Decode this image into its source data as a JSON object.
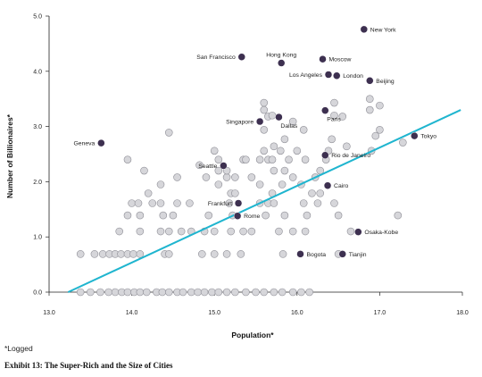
{
  "chart_data": {
    "type": "scatter",
    "xlabel": "Population*",
    "ylabel": "Number of Billionaires*",
    "xlim": [
      13.0,
      18.0
    ],
    "ylim": [
      0.0,
      5.0
    ],
    "xticks": [
      "13.0",
      "14.0",
      "15.0",
      "16.0",
      "17.0",
      "18.0"
    ],
    "yticks": [
      "0.0",
      "1.0",
      "2.0",
      "3.0",
      "4.0",
      "5.0"
    ],
    "trendline": {
      "x": [
        13.23,
        17.98
      ],
      "y": [
        0.0,
        3.3
      ],
      "color": "#1fb5cf"
    },
    "colors": {
      "highlight": "#3d3050",
      "background_point": "#d6d6da",
      "background_stroke": "#8e8e96"
    },
    "highlighted": [
      {
        "label": "New York",
        "x": 16.81,
        "y": 4.76
      },
      {
        "label": "San Francisco",
        "x": 15.33,
        "y": 4.26
      },
      {
        "label": "Hong Kong",
        "x": 15.81,
        "y": 4.15
      },
      {
        "label": "Moscow",
        "x": 16.31,
        "y": 4.22
      },
      {
        "label": "Los Angeles",
        "x": 16.38,
        "y": 3.94
      },
      {
        "label": "London",
        "x": 16.48,
        "y": 3.92
      },
      {
        "label": "Beijing",
        "x": 16.88,
        "y": 3.83
      },
      {
        "label": "Paris",
        "x": 16.34,
        "y": 3.29
      },
      {
        "label": "Singapore",
        "x": 15.55,
        "y": 3.09
      },
      {
        "label": "Dallas",
        "x": 15.78,
        "y": 3.17
      },
      {
        "label": "Geneva",
        "x": 13.63,
        "y": 2.7
      },
      {
        "label": "Tokyo",
        "x": 17.42,
        "y": 2.83
      },
      {
        "label": "Rio de Janeiro",
        "x": 16.34,
        "y": 2.48
      },
      {
        "label": "Seattle",
        "x": 15.11,
        "y": 2.29
      },
      {
        "label": "Cairo",
        "x": 16.37,
        "y": 1.93
      },
      {
        "label": "Frankfurt",
        "x": 15.29,
        "y": 1.61
      },
      {
        "label": "Rome",
        "x": 15.28,
        "y": 1.38
      },
      {
        "label": "Osaka-Kobe",
        "x": 16.74,
        "y": 1.09
      },
      {
        "label": "Bogota",
        "x": 16.04,
        "y": 0.69
      },
      {
        "label": "Tianjin",
        "x": 16.55,
        "y": 0.69
      }
    ],
    "background_points": [
      [
        13.38,
        0
      ],
      [
        13.5,
        0
      ],
      [
        13.62,
        0
      ],
      [
        13.72,
        0
      ],
      [
        13.8,
        0
      ],
      [
        13.88,
        0
      ],
      [
        13.95,
        0
      ],
      [
        14.03,
        0
      ],
      [
        14.1,
        0
      ],
      [
        14.18,
        0
      ],
      [
        14.3,
        0
      ],
      [
        14.37,
        0
      ],
      [
        14.45,
        0
      ],
      [
        14.55,
        0
      ],
      [
        14.62,
        0
      ],
      [
        14.72,
        0
      ],
      [
        14.8,
        0
      ],
      [
        14.88,
        0
      ],
      [
        14.97,
        0
      ],
      [
        15.05,
        0
      ],
      [
        15.15,
        0
      ],
      [
        15.25,
        0
      ],
      [
        15.38,
        0
      ],
      [
        15.5,
        0
      ],
      [
        15.6,
        0
      ],
      [
        15.72,
        0
      ],
      [
        15.82,
        0
      ],
      [
        15.95,
        0
      ],
      [
        16.05,
        0
      ],
      [
        16.15,
        0
      ],
      [
        13.38,
        0.69
      ],
      [
        13.55,
        0.69
      ],
      [
        13.65,
        0.69
      ],
      [
        13.73,
        0.69
      ],
      [
        13.8,
        0.69
      ],
      [
        13.87,
        0.69
      ],
      [
        13.95,
        0.69
      ],
      [
        14.02,
        0.69
      ],
      [
        14.1,
        0.69
      ],
      [
        14.4,
        0.69
      ],
      [
        14.45,
        0.69
      ],
      [
        14.85,
        0.69
      ],
      [
        15.0,
        0.69
      ],
      [
        15.15,
        0.69
      ],
      [
        15.32,
        0.69
      ],
      [
        15.83,
        0.69
      ],
      [
        16.5,
        0.69
      ],
      [
        13.85,
        1.1
      ],
      [
        14.1,
        1.1
      ],
      [
        14.35,
        1.1
      ],
      [
        14.45,
        1.1
      ],
      [
        14.6,
        1.1
      ],
      [
        14.72,
        1.1
      ],
      [
        14.88,
        1.1
      ],
      [
        15.0,
        1.1
      ],
      [
        15.2,
        1.1
      ],
      [
        15.35,
        1.1
      ],
      [
        15.45,
        1.1
      ],
      [
        15.78,
        1.1
      ],
      [
        15.95,
        1.1
      ],
      [
        16.1,
        1.1
      ],
      [
        16.65,
        1.1
      ],
      [
        13.95,
        1.39
      ],
      [
        14.1,
        1.39
      ],
      [
        14.38,
        1.39
      ],
      [
        14.5,
        1.39
      ],
      [
        14.93,
        1.39
      ],
      [
        15.22,
        1.39
      ],
      [
        15.62,
        1.39
      ],
      [
        15.85,
        1.39
      ],
      [
        16.12,
        1.39
      ],
      [
        16.5,
        1.39
      ],
      [
        17.22,
        1.39
      ],
      [
        14.0,
        1.61
      ],
      [
        14.08,
        1.61
      ],
      [
        14.25,
        1.61
      ],
      [
        14.35,
        1.61
      ],
      [
        14.55,
        1.61
      ],
      [
        14.7,
        1.61
      ],
      [
        15.18,
        1.61
      ],
      [
        15.55,
        1.61
      ],
      [
        15.65,
        1.61
      ],
      [
        15.72,
        1.61
      ],
      [
        16.08,
        1.61
      ],
      [
        16.25,
        1.61
      ],
      [
        16.45,
        1.61
      ],
      [
        14.2,
        1.79
      ],
      [
        15.2,
        1.79
      ],
      [
        15.25,
        1.79
      ],
      [
        15.7,
        1.79
      ],
      [
        16.18,
        1.79
      ],
      [
        16.28,
        1.79
      ],
      [
        14.35,
        1.95
      ],
      [
        15.05,
        1.95
      ],
      [
        15.55,
        1.95
      ],
      [
        15.82,
        1.95
      ],
      [
        16.05,
        1.95
      ],
      [
        14.55,
        2.08
      ],
      [
        14.9,
        2.08
      ],
      [
        15.15,
        2.08
      ],
      [
        15.25,
        2.08
      ],
      [
        15.45,
        2.08
      ],
      [
        15.95,
        2.08
      ],
      [
        16.22,
        2.08
      ],
      [
        14.15,
        2.2
      ],
      [
        15.05,
        2.2
      ],
      [
        15.15,
        2.2
      ],
      [
        15.72,
        2.2
      ],
      [
        15.85,
        2.2
      ],
      [
        16.28,
        2.2
      ],
      [
        13.95,
        2.4
      ],
      [
        14.82,
        2.3
      ],
      [
        15.05,
        2.4
      ],
      [
        15.35,
        2.4
      ],
      [
        15.38,
        2.4
      ],
      [
        15.55,
        2.4
      ],
      [
        15.65,
        2.4
      ],
      [
        15.7,
        2.4
      ],
      [
        15.9,
        2.4
      ],
      [
        16.1,
        2.4
      ],
      [
        16.35,
        2.4
      ],
      [
        15.0,
        2.56
      ],
      [
        15.6,
        2.56
      ],
      [
        15.8,
        2.56
      ],
      [
        16.0,
        2.56
      ],
      [
        16.38,
        2.56
      ],
      [
        16.6,
        2.64
      ],
      [
        16.9,
        2.56
      ],
      [
        15.72,
        2.64
      ],
      [
        15.85,
        2.77
      ],
      [
        16.42,
        2.77
      ],
      [
        16.95,
        2.83
      ],
      [
        17.0,
        2.94
      ],
      [
        14.45,
        2.89
      ],
      [
        15.6,
        2.94
      ],
      [
        16.08,
        2.94
      ],
      [
        15.65,
        3.18
      ],
      [
        15.7,
        3.2
      ],
      [
        15.95,
        3.09
      ],
      [
        16.45,
        3.2
      ],
      [
        16.55,
        3.18
      ],
      [
        15.6,
        3.3
      ],
      [
        16.88,
        3.3
      ],
      [
        17.0,
        3.38
      ],
      [
        15.6,
        3.43
      ],
      [
        16.88,
        3.5
      ],
      [
        16.45,
        3.43
      ],
      [
        17.28,
        2.71
      ]
    ]
  },
  "footnote": "*Logged",
  "caption": "Exhibit 13: The Super-Rich and the Size of Cities"
}
